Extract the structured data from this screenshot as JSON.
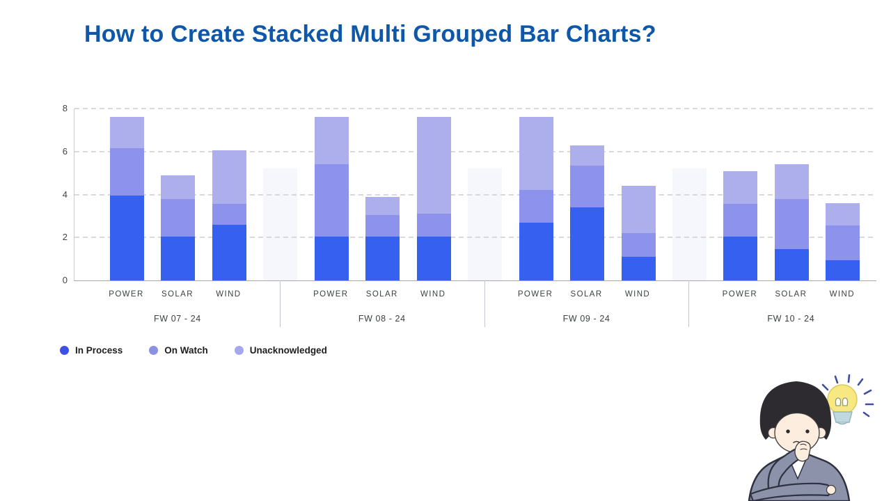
{
  "header": {
    "title": "How to Create Stacked Multi Grouped Bar Charts?",
    "title_color": "#0E57A9"
  },
  "chart_data": {
    "type": "bar",
    "stacked": true,
    "title": "",
    "xlabel": "",
    "ylabel": "",
    "grid": "dashed horizontal",
    "legend_position": "bottom-left",
    "y_axis": {
      "ticks": [
        0,
        2,
        4,
        6,
        8
      ],
      "min": 0,
      "max": 8
    },
    "series_names": [
      "In Process",
      "On Watch",
      "Unacknowledged"
    ],
    "colors": {
      "in_process": "#3560F0",
      "on_watch": "#8D92EC",
      "unacknowledged": "#ACAFEC",
      "placeholder_bar": "#F6F7FD"
    },
    "placeholder_bar_height": 5.2,
    "groups": [
      {
        "label": "FW 07 - 24",
        "bars": [
          {
            "category": "POWER",
            "values": [
              3.95,
              2.2,
              1.45
            ]
          },
          {
            "category": "SOLAR",
            "values": [
              2.05,
              1.75,
              1.1
            ]
          },
          {
            "category": "WIND",
            "values": [
              2.6,
              0.95,
              2.5
            ]
          }
        ]
      },
      {
        "label": "FW 08 - 24",
        "bars": [
          {
            "category": "POWER",
            "values": [
              2.05,
              3.35,
              2.2
            ]
          },
          {
            "category": "SOLAR",
            "values": [
              2.05,
              1.0,
              0.85
            ]
          },
          {
            "category": "WIND",
            "values": [
              2.05,
              1.05,
              4.5
            ]
          }
        ]
      },
      {
        "label": "FW 09 - 24",
        "bars": [
          {
            "category": "POWER",
            "values": [
              2.7,
              1.5,
              3.4
            ]
          },
          {
            "category": "SOLAR",
            "values": [
              3.4,
              1.95,
              0.95
            ]
          },
          {
            "category": "WIND",
            "values": [
              1.1,
              1.1,
              2.2
            ]
          }
        ]
      },
      {
        "label": "FW 10 - 24",
        "bars": [
          {
            "category": "POWER",
            "values": [
              2.05,
              1.5,
              1.55
            ]
          },
          {
            "category": "SOLAR",
            "values": [
              1.45,
              2.35,
              1.6
            ]
          },
          {
            "category": "WIND",
            "values": [
              0.95,
              1.6,
              1.05
            ]
          }
        ]
      }
    ],
    "legend": [
      {
        "label": "In Process",
        "color": "#3D51E3"
      },
      {
        "label": "On Watch",
        "color": "#8A90E4"
      },
      {
        "label": "Unacknowledged",
        "color": "#A5A9EC"
      }
    ]
  },
  "illustration": {
    "name": "thinking-person-with-lightbulb"
  }
}
